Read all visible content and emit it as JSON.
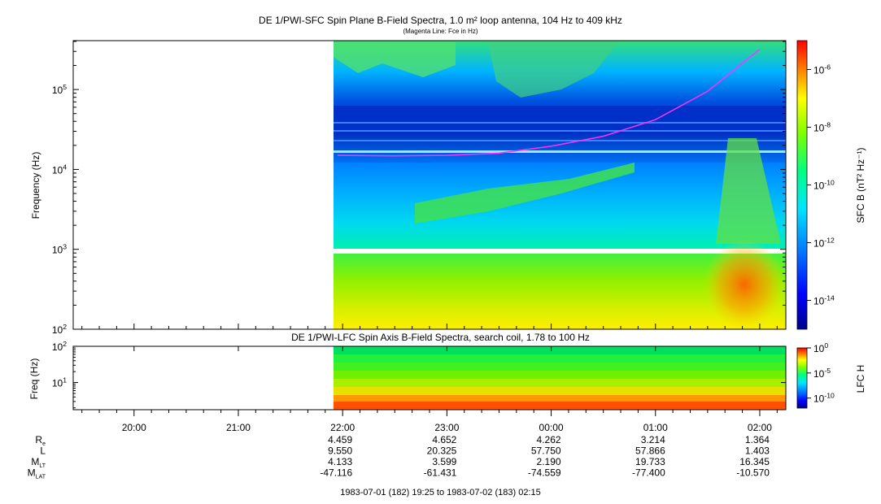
{
  "top_panel": {
    "title": "DE 1/PWI-SFC  Spin Plane B-Field Spectra, 1.0 m² loop antenna, 104 Hz to 409 kHz",
    "subtitle": "(Magenta Line: Fce in Hz)",
    "ylabel": "Frequency (Hz)",
    "colorbar_label": "SFC B (nT² Hz⁻¹)"
  },
  "bottom_panel": {
    "title": "DE 1/PWI-LFC  Spin Axis B-Field Spectra, search coil, 1.78 to 100 Hz",
    "ylabel": "Freq (Hz)",
    "colorbar_label": "LFC H"
  },
  "time_axis": {
    "ticks": [
      "20:00",
      "21:00",
      "22:00",
      "23:00",
      "00:00",
      "01:00",
      "02:00"
    ]
  },
  "ephemeris": {
    "rows": [
      {
        "label": "R",
        "sub": "e",
        "values": [
          "4.459",
          "4.652",
          "4.262",
          "3.214",
          "1.364"
        ]
      },
      {
        "label": "L",
        "sub": "",
        "values": [
          "9.550",
          "20.325",
          "57.750",
          "57.866",
          "1.403"
        ]
      },
      {
        "label": "M",
        "sub": "LT",
        "values": [
          "4.133",
          "3.599",
          "2.190",
          "19.733",
          "16.345"
        ]
      },
      {
        "label": "M",
        "sub": "LAT",
        "values": [
          "-47.116",
          "-61.431",
          "-74.559",
          "-77.400",
          "-10.570"
        ]
      }
    ]
  },
  "footer": "1983-07-01 (182) 19:25 to 1983-07-02 (183) 02:15",
  "colors": {
    "fce_line": "#ff33ff",
    "gap": "#ffffff",
    "colormap": [
      "#00008b",
      "#0000ff",
      "#0080ff",
      "#00e5ff",
      "#00ff80",
      "#80ff00",
      "#ffff00",
      "#ff8000",
      "#ff0000"
    ]
  },
  "chart_data": [
    {
      "type": "heatmap",
      "title": "DE 1/PWI-SFC  Spin Plane B-Field Spectra, 1.0 m² loop antenna, 104 Hz to 409 kHz",
      "ylabel": "Frequency (Hz)",
      "yscale": "log",
      "ylim": [
        100,
        409000
      ],
      "y_ticks": [
        {
          "value": 100,
          "base": "10",
          "exp": "2"
        },
        {
          "value": 1000,
          "base": "10",
          "exp": "3"
        },
        {
          "value": 10000,
          "base": "10",
          "exp": "4"
        },
        {
          "value": 100000,
          "base": "10",
          "exp": "5"
        }
      ],
      "xlim": [
        "19:25",
        "02:15"
      ],
      "data_start": "21:57",
      "colorbar": {
        "label": "SFC B (nT² Hz⁻¹)",
        "scale": "log",
        "range": [
          1e-15,
          1e-05
        ],
        "ticks": [
          {
            "base": "10",
            "exp": "-6"
          },
          {
            "base": "10",
            "exp": "-8"
          },
          {
            "base": "10",
            "exp": "-10"
          },
          {
            "base": "10",
            "exp": "-12"
          },
          {
            "base": "10",
            "exp": "-14"
          }
        ]
      },
      "line_series": {
        "name": "Fce in Hz",
        "x": [
          "21:57",
          "22:30",
          "23:00",
          "23:30",
          "00:00",
          "00:30",
          "01:00",
          "01:30",
          "02:00"
        ],
        "y": [
          15000,
          14800,
          15000,
          16000,
          19500,
          26000,
          42000,
          95000,
          320000
        ]
      }
    },
    {
      "type": "heatmap",
      "title": "DE 1/PWI-LFC  Spin Axis B-Field Spectra, search coil, 1.78 to 100 Hz",
      "ylabel": "Freq (Hz)",
      "yscale": "log",
      "ylim": [
        1.78,
        100
      ],
      "y_ticks": [
        {
          "value": 10,
          "base": "10",
          "exp": "1"
        },
        {
          "value": 100,
          "base": "10",
          "exp": "2"
        }
      ],
      "xlim": [
        "19:25",
        "02:15"
      ],
      "data_start": "21:57",
      "colorbar": {
        "label": "LFC H",
        "scale": "log",
        "range": [
          1e-12,
          1
        ],
        "ticks": [
          {
            "base": "10",
            "exp": "0"
          },
          {
            "base": "10",
            "exp": "-5"
          },
          {
            "base": "10",
            "exp": "-10"
          }
        ]
      }
    }
  ]
}
